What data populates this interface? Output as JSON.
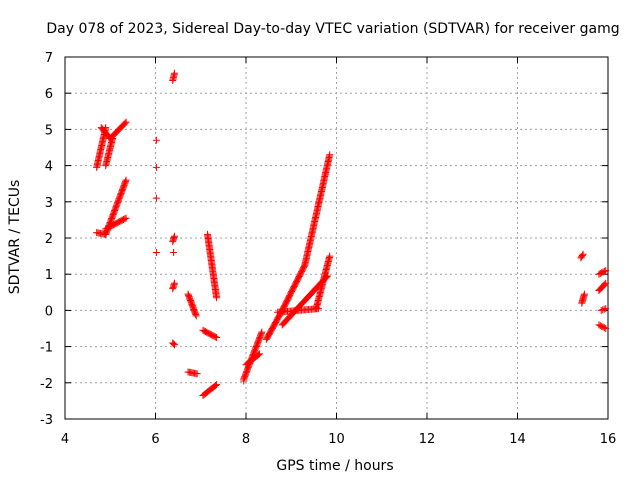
{
  "chart_data": {
    "type": "scatter",
    "title": "Day 078 of 2023, Sidereal Day-to-day VTEC variation (SDTVAR) for receiver gamg",
    "xlabel": "GPS time / hours",
    "ylabel": "SDTVAR / TECUs",
    "xlim": [
      4,
      16
    ],
    "ylim": [
      -3,
      7
    ],
    "xticks": [
      "4",
      "6",
      "8",
      "10",
      "12",
      "14",
      "16"
    ],
    "yticks": [
      "-3",
      "-2",
      "-1",
      "0",
      "1",
      "2",
      "3",
      "4",
      "5",
      "6",
      "7"
    ],
    "grid": true,
    "legend": "none",
    "marker": "+",
    "colors": {
      "points": "#ff0000",
      "axes": "#000000",
      "grid": "#a0a0a0"
    },
    "segments": [
      {
        "x0": 4.7,
        "x1": 4.9,
        "y0": 3.95,
        "y1": 5.05
      },
      {
        "x0": 4.8,
        "x1": 5.0,
        "y0": 5.05,
        "y1": 4.75
      },
      {
        "x0": 5.0,
        "x1": 5.35,
        "y0": 4.75,
        "y1": 5.2
      },
      {
        "x0": 4.9,
        "x1": 5.05,
        "y0": 4.0,
        "y1": 4.75
      },
      {
        "x0": 4.7,
        "x1": 4.9,
        "y0": 2.15,
        "y1": 2.1
      },
      {
        "x0": 4.9,
        "x1": 5.35,
        "y0": 2.1,
        "y1": 3.6
      },
      {
        "x0": 4.9,
        "x1": 5.35,
        "y0": 2.25,
        "y1": 2.55
      },
      {
        "x0": 6.38,
        "x1": 6.42,
        "y0": 6.35,
        "y1": 6.55
      },
      {
        "x0": 6.38,
        "x1": 6.42,
        "y0": 1.9,
        "y1": 2.05
      },
      {
        "x0": 6.38,
        "x1": 6.42,
        "y0": 0.6,
        "y1": 0.75
      },
      {
        "x0": 6.38,
        "x1": 6.42,
        "y0": -0.9,
        "y1": -0.95
      },
      {
        "x0": 6.72,
        "x1": 6.9,
        "y0": 0.45,
        "y1": -0.15
      },
      {
        "x0": 6.72,
        "x1": 6.92,
        "y0": -1.7,
        "y1": -1.75
      },
      {
        "x0": 7.05,
        "x1": 7.35,
        "y0": -2.35,
        "y1": -2.05
      },
      {
        "x0": 7.05,
        "x1": 7.35,
        "y0": -0.55,
        "y1": -0.75
      },
      {
        "x0": 7.15,
        "x1": 7.35,
        "y0": 2.1,
        "y1": 0.35
      },
      {
        "x0": 7.95,
        "x1": 8.35,
        "y0": -1.9,
        "y1": -0.6
      },
      {
        "x0": 8.0,
        "x1": 8.3,
        "y0": -1.5,
        "y1": -1.2
      },
      {
        "x0": 8.45,
        "x1": 8.8,
        "y0": -0.8,
        "y1": 0.0
      },
      {
        "x0": 8.8,
        "x1": 9.3,
        "y0": 0.0,
        "y1": 1.25
      },
      {
        "x0": 9.3,
        "x1": 9.85,
        "y0": 1.25,
        "y1": 4.3
      },
      {
        "x0": 8.7,
        "x1": 9.6,
        "y0": -0.05,
        "y1": 0.05
      },
      {
        "x0": 9.55,
        "x1": 9.85,
        "y0": 0.05,
        "y1": 1.5
      },
      {
        "x0": 8.8,
        "x1": 9.8,
        "y0": -0.4,
        "y1": 0.95
      },
      {
        "x0": 15.4,
        "x1": 15.45,
        "y0": 1.45,
        "y1": 1.55
      },
      {
        "x0": 15.42,
        "x1": 15.48,
        "y0": 0.2,
        "y1": 0.45
      },
      {
        "x0": 15.8,
        "x1": 15.95,
        "y0": 1.0,
        "y1": 1.1
      },
      {
        "x0": 15.8,
        "x1": 15.95,
        "y0": 0.55,
        "y1": 0.75
      },
      {
        "x0": 15.8,
        "x1": 15.95,
        "y0": -0.4,
        "y1": -0.5
      },
      {
        "x0": 15.85,
        "x1": 15.95,
        "y0": 0.0,
        "y1": 0.05
      }
    ],
    "points": [
      {
        "x": 6.02,
        "y": 4.7
      },
      {
        "x": 6.02,
        "y": 3.95
      },
      {
        "x": 6.02,
        "y": 3.1
      },
      {
        "x": 6.02,
        "y": 1.6
      },
      {
        "x": 6.4,
        "y": 1.6
      },
      {
        "x": 7.95,
        "y": -1.95
      }
    ]
  }
}
